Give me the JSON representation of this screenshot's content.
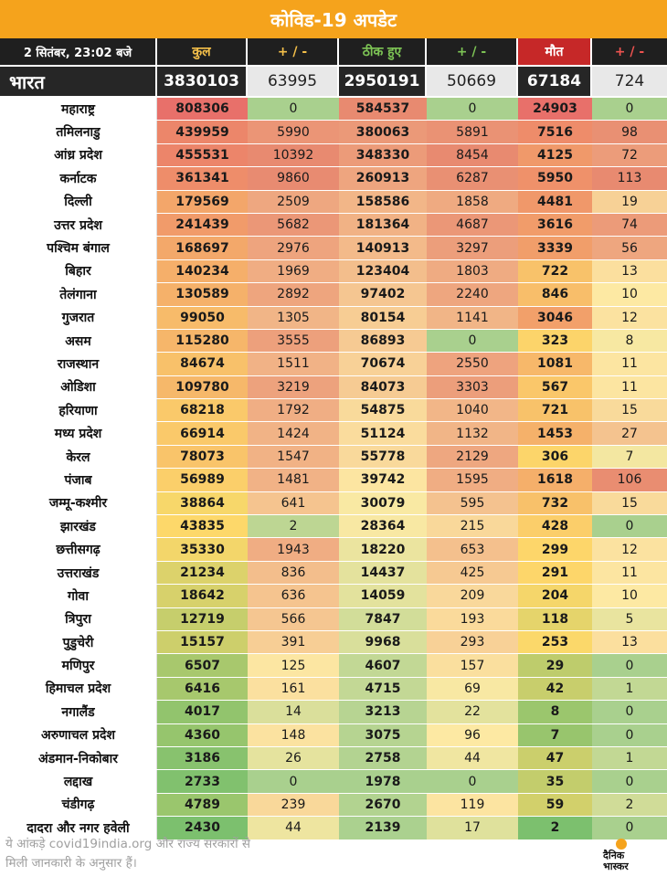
{
  "title": "कोविड-19 अपडेट",
  "header": {
    "date": "2 सितंबर, 23:02 बजे",
    "total": "कुल",
    "change_total": "+ / -",
    "cured": "ठीक हुए",
    "change_cured": "+ / -",
    "deaths": "मौत",
    "change_deaths": "+ / -"
  },
  "india": {
    "name": "भारत",
    "total": "3830103",
    "change_total": "63995",
    "cured": "2950191",
    "change_cured": "50669",
    "deaths": "67184",
    "change_deaths": "724"
  },
  "rows": [
    {
      "name": "महाराष्ट्र",
      "total": "808306",
      "d1": "0",
      "cured": "584537",
      "d2": "0",
      "deaths": "24903",
      "d3": "0"
    },
    {
      "name": "तमिलनाडु",
      "total": "439959",
      "d1": "5990",
      "cured": "380063",
      "d2": "5891",
      "deaths": "7516",
      "d3": "98"
    },
    {
      "name": "आंध्र प्रदेश",
      "total": "455531",
      "d1": "10392",
      "cured": "348330",
      "d2": "8454",
      "deaths": "4125",
      "d3": "72"
    },
    {
      "name": "कर्नाटक",
      "total": "361341",
      "d1": "9860",
      "cured": "260913",
      "d2": "6287",
      "deaths": "5950",
      "d3": "113"
    },
    {
      "name": "दिल्ली",
      "total": "179569",
      "d1": "2509",
      "cured": "158586",
      "d2": "1858",
      "deaths": "4481",
      "d3": "19"
    },
    {
      "name": "उत्तर प्रदेश",
      "total": "241439",
      "d1": "5682",
      "cured": "181364",
      "d2": "4687",
      "deaths": "3616",
      "d3": "74"
    },
    {
      "name": "पश्चिम बंगाल",
      "total": "168697",
      "d1": "2976",
      "cured": "140913",
      "d2": "3297",
      "deaths": "3339",
      "d3": "56"
    },
    {
      "name": "बिहार",
      "total": "140234",
      "d1": "1969",
      "cured": "123404",
      "d2": "1803",
      "deaths": "722",
      "d3": "13"
    },
    {
      "name": "तेलंगाना",
      "total": "130589",
      "d1": "2892",
      "cured": "97402",
      "d2": "2240",
      "deaths": "846",
      "d3": "10"
    },
    {
      "name": "गुजरात",
      "total": "99050",
      "d1": "1305",
      "cured": "80154",
      "d2": "1141",
      "deaths": "3046",
      "d3": "12"
    },
    {
      "name": "असम",
      "total": "115280",
      "d1": "3555",
      "cured": "86893",
      "d2": "0",
      "deaths": "323",
      "d3": "8"
    },
    {
      "name": "राजस्थान",
      "total": "84674",
      "d1": "1511",
      "cured": "70674",
      "d2": "2550",
      "deaths": "1081",
      "d3": "11"
    },
    {
      "name": "ओडिशा",
      "total": "109780",
      "d1": "3219",
      "cured": "84073",
      "d2": "3303",
      "deaths": "567",
      "d3": "11"
    },
    {
      "name": "हरियाणा",
      "total": "68218",
      "d1": "1792",
      "cured": "54875",
      "d2": "1040",
      "deaths": "721",
      "d3": "15"
    },
    {
      "name": "मध्य प्रदेश",
      "total": "66914",
      "d1": "1424",
      "cured": "51124",
      "d2": "1132",
      "deaths": "1453",
      "d3": "27"
    },
    {
      "name": "केरल",
      "total": "78073",
      "d1": "1547",
      "cured": "55778",
      "d2": "2129",
      "deaths": "306",
      "d3": "7"
    },
    {
      "name": "पंजाब",
      "total": "56989",
      "d1": "1481",
      "cured": "39742",
      "d2": "1595",
      "deaths": "1618",
      "d3": "106"
    },
    {
      "name": "जम्मू-कश्मीर",
      "total": "38864",
      "d1": "641",
      "cured": "30079",
      "d2": "595",
      "deaths": "732",
      "d3": "15"
    },
    {
      "name": "झारखंड",
      "total": "43835",
      "d1": "2",
      "cured": "28364",
      "d2": "215",
      "deaths": "428",
      "d3": "0"
    },
    {
      "name": "छत्तीसगढ़",
      "total": "35330",
      "d1": "1943",
      "cured": "18220",
      "d2": "653",
      "deaths": "299",
      "d3": "12"
    },
    {
      "name": "उत्तराखंड",
      "total": "21234",
      "d1": "836",
      "cured": "14437",
      "d2": "425",
      "deaths": "291",
      "d3": "11"
    },
    {
      "name": "गोवा",
      "total": "18642",
      "d1": "636",
      "cured": "14059",
      "d2": "209",
      "deaths": "204",
      "d3": "10"
    },
    {
      "name": "त्रिपुरा",
      "total": "12719",
      "d1": "566",
      "cured": "7847",
      "d2": "193",
      "deaths": "118",
      "d3": "5"
    },
    {
      "name": "पुडुचेरी",
      "total": "15157",
      "d1": "391",
      "cured": "9968",
      "d2": "293",
      "deaths": "253",
      "d3": "13"
    },
    {
      "name": "मणिपुर",
      "total": "6507",
      "d1": "125",
      "cured": "4607",
      "d2": "157",
      "deaths": "29",
      "d3": "0"
    },
    {
      "name": "हिमाचल प्रदेश",
      "total": "6416",
      "d1": "161",
      "cured": "4715",
      "d2": "69",
      "deaths": "42",
      "d3": "1"
    },
    {
      "name": "नगालैंड",
      "total": "4017",
      "d1": "14",
      "cured": "3213",
      "d2": "22",
      "deaths": "8",
      "d3": "0"
    },
    {
      "name": "अरुणाचल प्रदेश",
      "total": "4360",
      "d1": "148",
      "cured": "3075",
      "d2": "96",
      "deaths": "7",
      "d3": "0"
    },
    {
      "name": "अंडमान-निकोबार",
      "total": "3186",
      "d1": "26",
      "cured": "2758",
      "d2": "44",
      "deaths": "47",
      "d3": "1"
    },
    {
      "name": "लद्दाख",
      "total": "2733",
      "d1": "0",
      "cured": "1978",
      "d2": "0",
      "deaths": "35",
      "d3": "0"
    },
    {
      "name": "चंडीगढ़",
      "total": "4789",
      "d1": "239",
      "cured": "2670",
      "d2": "119",
      "deaths": "59",
      "d3": "2"
    },
    {
      "name": "दादरा और नगर हवेली",
      "total": "2430",
      "d1": "44",
      "cured": "2139",
      "d2": "17",
      "deaths": "2",
      "d3": "0"
    }
  ],
  "colors": {
    "title_bg": "#f5a31c",
    "header_bg": "#1f1f1f",
    "death_header_bg": "#c62828",
    "scale_high": "#e8706a",
    "scale_mid": "#fdd86a",
    "scale_low": "#7cc06e",
    "light_high": "#e88a70",
    "light_mid": "#fdeaa4",
    "light_low": "#a9d08e"
  },
  "footer": {
    "note_line1": "ये आंकड़े covid19india.org और राज्य सरकारों से",
    "note_line2": "मिली जानकारी के अनुसार हैं।",
    "logo_line1": "दैनिक",
    "logo_line2": "भास्कर"
  }
}
